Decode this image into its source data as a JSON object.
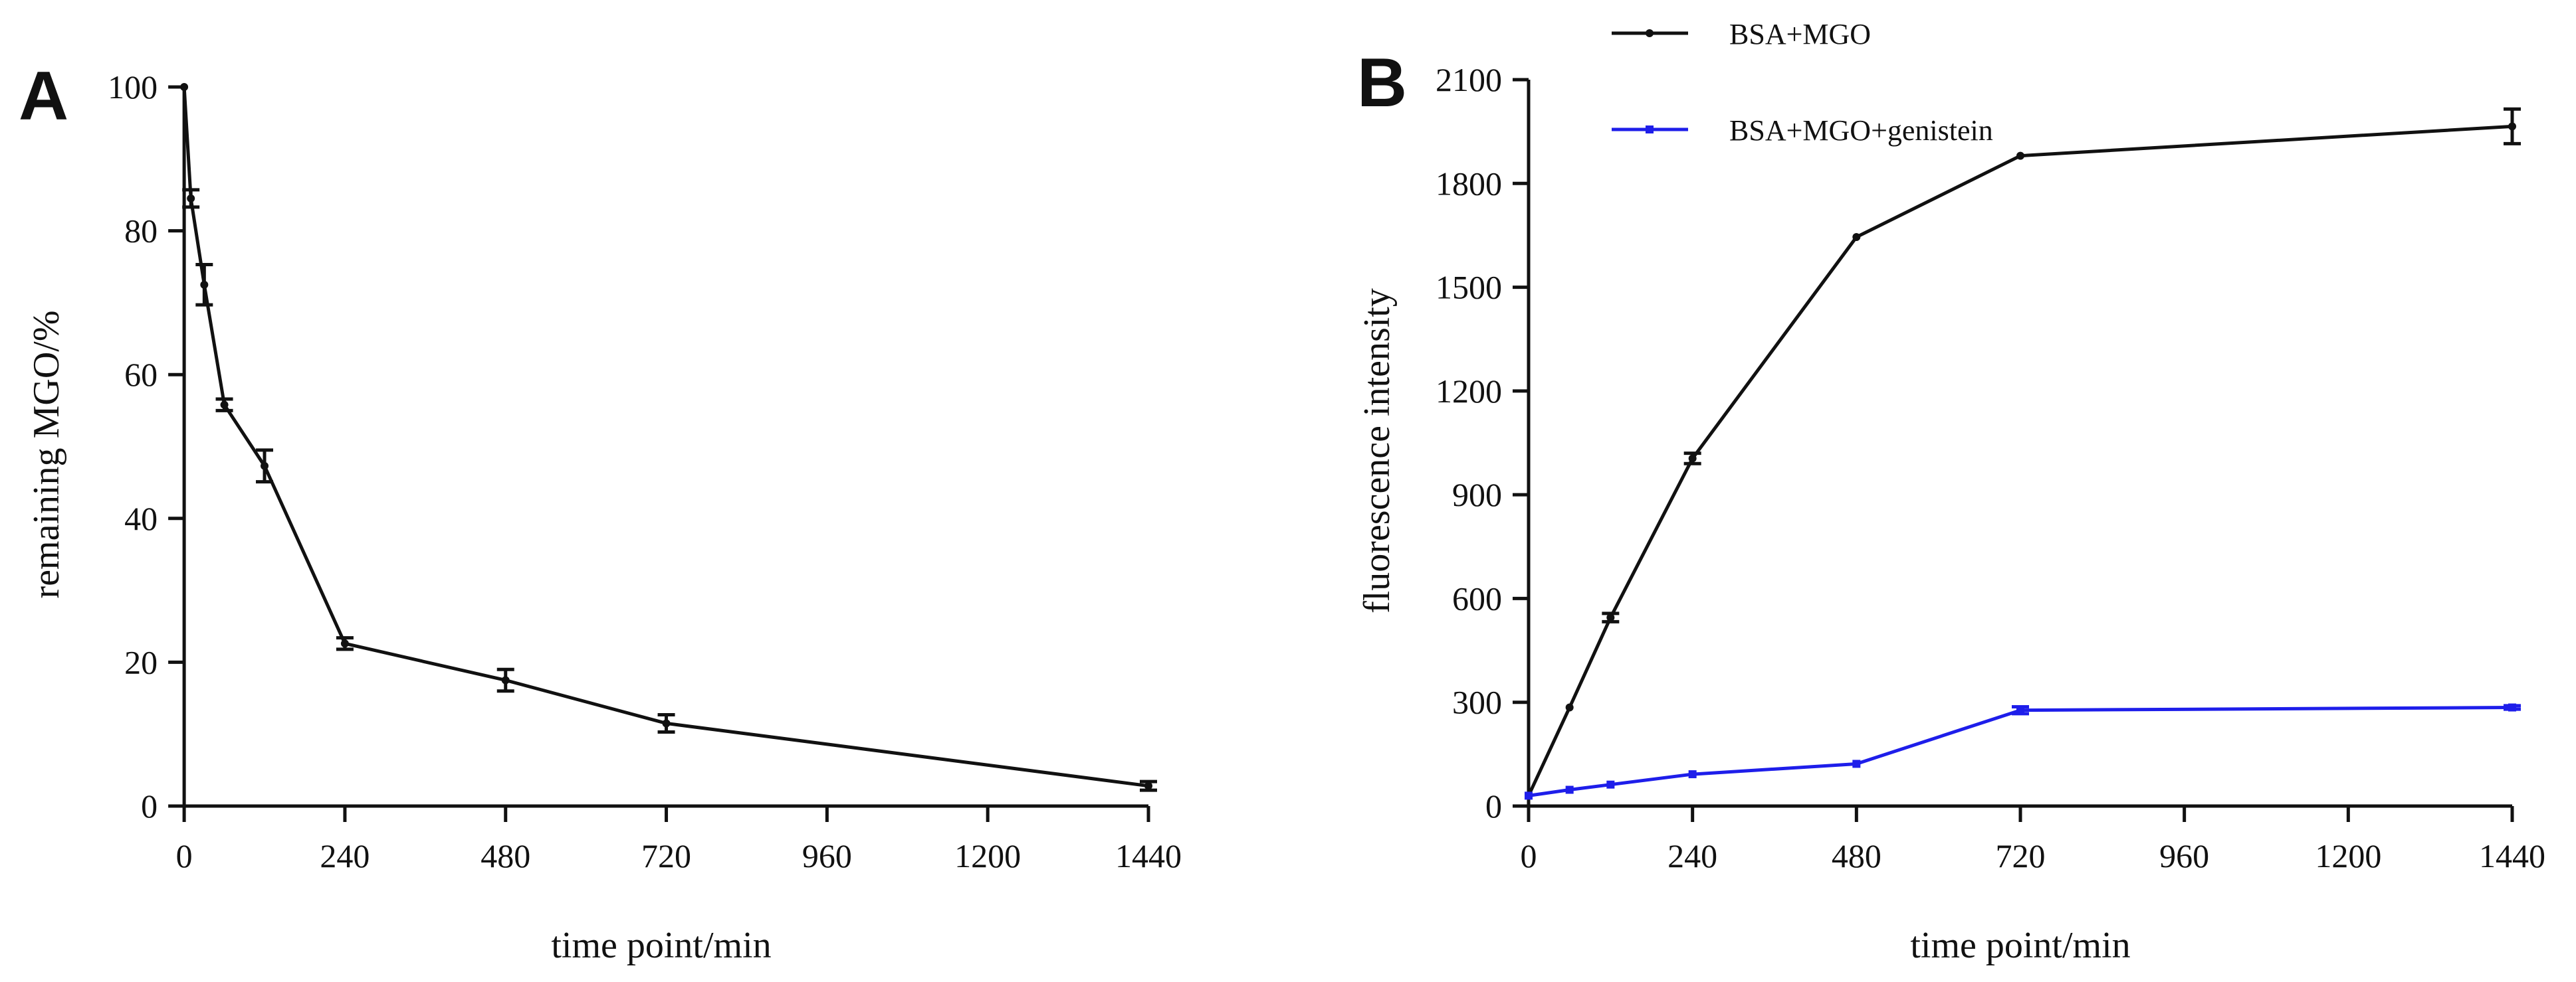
{
  "figure": {
    "background": "#ffffff",
    "axis_color": "#111111"
  },
  "chart_data": [
    {
      "panel": "A",
      "type": "line",
      "title": "",
      "xlabel": "time point/min",
      "ylabel": "remaining MGO/%",
      "xlim": [
        0,
        1440
      ],
      "ylim": [
        0,
        100
      ],
      "xticks": [
        0,
        240,
        480,
        720,
        960,
        1200,
        1440
      ],
      "yticks": [
        0,
        20,
        40,
        60,
        80,
        100
      ],
      "grid": false,
      "series": [
        {
          "name": "remaining MGO",
          "color": "#111111",
          "x": [
            0,
            10,
            30,
            60,
            120,
            240,
            480,
            720,
            1440
          ],
          "y": [
            100,
            84.5,
            72.5,
            55.8,
            47.3,
            22.6,
            17.5,
            11.5,
            2.8
          ],
          "err": [
            0,
            1.2,
            2.8,
            0.8,
            2.2,
            0.8,
            1.5,
            1.2,
            0.6
          ]
        }
      ]
    },
    {
      "panel": "B",
      "type": "line",
      "title": "",
      "xlabel": "time point/min",
      "ylabel": "fluorescence intensity",
      "xlim": [
        0,
        1440
      ],
      "ylim": [
        0,
        2100
      ],
      "xticks": [
        0,
        240,
        480,
        720,
        960,
        1200,
        1440
      ],
      "yticks": [
        0,
        300,
        600,
        900,
        1200,
        1500,
        1800,
        2100
      ],
      "grid": false,
      "legend_position": "top-left",
      "series": [
        {
          "name": "BSA+MGO",
          "color": "#111111",
          "x": [
            0,
            60,
            120,
            240,
            480,
            720,
            1440
          ],
          "y": [
            30,
            285,
            545,
            1005,
            1645,
            1880,
            1965
          ],
          "err": [
            0,
            0,
            12,
            15,
            0,
            0,
            50
          ]
        },
        {
          "name": "BSA+MGO+genistein",
          "color": "#1e1eea",
          "x": [
            0,
            60,
            120,
            240,
            480,
            720,
            1440
          ],
          "y": [
            30,
            47,
            62,
            92,
            122,
            277,
            285
          ],
          "err": [
            0,
            0,
            0,
            0,
            0,
            10,
            5
          ]
        }
      ]
    }
  ]
}
